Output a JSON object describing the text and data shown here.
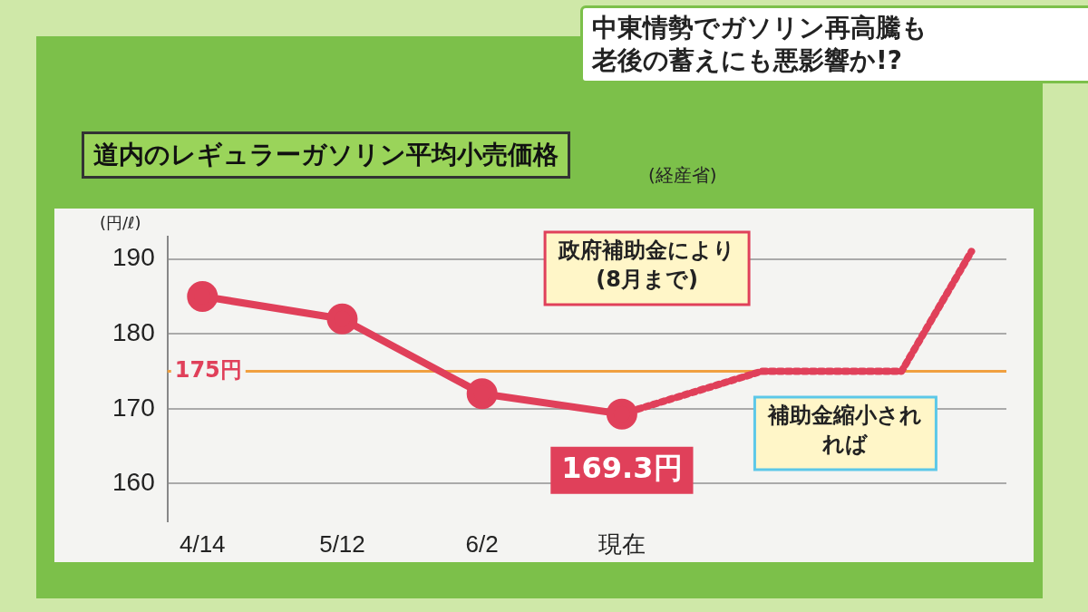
{
  "chart_data": {
    "type": "line",
    "title": "道内のレギュラーガソリン平均小売価格",
    "subtitle": "(経産省)",
    "ylabel": "(円/ℓ)",
    "categories": [
      "4/14",
      null,
      "5/12",
      null,
      "6/2",
      null,
      "現在",
      null,
      null,
      null,
      null,
      null
    ],
    "series": [
      {
        "color": "#e0405a",
        "values": [
          185,
          null,
          182,
          null,
          172,
          null,
          169.3,
          null,
          null,
          null,
          null,
          null
        ],
        "value_labels": [
          null,
          null,
          null,
          null,
          null,
          null,
          "169.3円",
          null,
          null,
          null,
          null,
          null
        ],
        "marker": "circle",
        "line_style": "solid"
      },
      {
        "color": "#e0405a",
        "values": [
          null,
          null,
          null,
          null,
          null,
          null,
          169.3,
          null,
          175,
          null,
          175,
          191
        ],
        "marker": "none",
        "line_style": "dotted"
      }
    ],
    "ylim": [
      155,
      193
    ],
    "yticks": [
      160,
      170,
      180,
      190
    ],
    "grid": "y",
    "legend": false,
    "ref_lines": [
      {
        "axis": "y",
        "value": 175,
        "label": "175円",
        "color": "#f0a040"
      }
    ],
    "annotations": [
      "中東情勢でガソリン再高騰も",
      "老後の蓄えにも悪影響か!?",
      "政府補助金により\n(8月まで)",
      "補助金縮小されれば"
    ]
  }
}
